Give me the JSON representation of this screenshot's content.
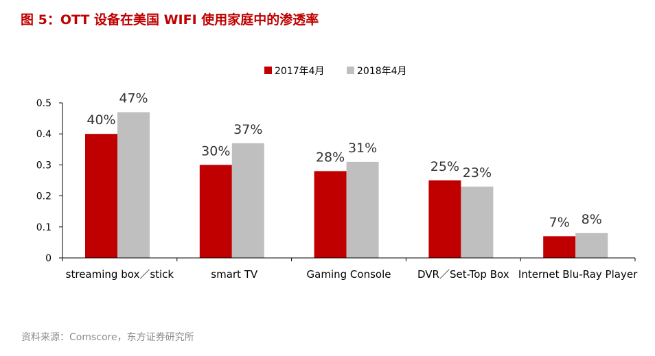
{
  "figure_title": "图 5：OTT 设备在美国 WIFI 使用家庭中的渗透率",
  "source_note": "资料来源：Comscore，东方证券研究所",
  "colors": {
    "title": "#c00000",
    "series_2017": "#c00000",
    "series_2018": "#bfbfbf",
    "axis": "#000000",
    "source": "#8c8c8c"
  },
  "chart_data": {
    "type": "bar",
    "title": "",
    "xlabel": "",
    "ylabel": "",
    "categories": [
      "streaming box／stick",
      "smart TV",
      "Gaming Console",
      "DVR／Set-Top Box",
      "Internet Blu-Ray Player"
    ],
    "series": [
      {
        "name": "2017年4月",
        "color": "#c00000",
        "values": [
          0.4,
          0.3,
          0.28,
          0.25,
          0.07
        ],
        "labels": [
          "40%",
          "30%",
          "28%",
          "25%",
          "7%"
        ]
      },
      {
        "name": "2018年4月",
        "color": "#bfbfbf",
        "values": [
          0.47,
          0.37,
          0.31,
          0.23,
          0.08
        ],
        "labels": [
          "47%",
          "37%",
          "31%",
          "23%",
          "8%"
        ]
      }
    ],
    "ylim": [
      0,
      0.5
    ],
    "yticks": [
      "0",
      "0.1",
      "0.2",
      "0.3",
      "0.4",
      "0.5"
    ],
    "legend_position": "top-center",
    "grid": false
  }
}
